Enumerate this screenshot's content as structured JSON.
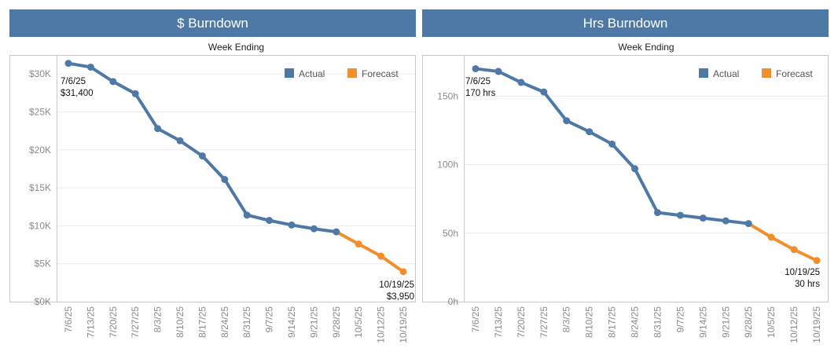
{
  "colors": {
    "actual": "#4e79a7",
    "forecast": "#f28e2b",
    "banner": "#4e79a7",
    "grid": "#ececec",
    "frame": "#c8c8c8"
  },
  "legend": {
    "actual_label": "Actual",
    "forecast_label": "Forecast"
  },
  "chart_data": [
    {
      "type": "line",
      "title": "$ Burndown",
      "xlabel": "Week Ending",
      "ylabel": "",
      "ylim": [
        0,
        32500
      ],
      "y_ticks": [
        0,
        5000,
        10000,
        15000,
        20000,
        25000,
        30000
      ],
      "y_tick_labels": [
        "$0K",
        "$5K",
        "$10K",
        "$15K",
        "$20K",
        "$25K",
        "$30K"
      ],
      "grid": true,
      "legend_position": "top-right",
      "categories": [
        "7/6/25",
        "7/13/25",
        "7/20/25",
        "7/27/25",
        "8/3/25",
        "8/10/25",
        "8/17/25",
        "8/24/25",
        "8/31/25",
        "9/7/25",
        "9/14/25",
        "9/21/25",
        "9/28/25",
        "10/5/25",
        "10/12/25",
        "10/19/25"
      ],
      "series": [
        {
          "name": "Actual",
          "values": [
            31400,
            30900,
            29000,
            27400,
            22800,
            21200,
            19200,
            16100,
            11400,
            10700,
            10100,
            9600,
            9200,
            null,
            null,
            null
          ]
        },
        {
          "name": "Forecast",
          "values": [
            null,
            null,
            null,
            null,
            null,
            null,
            null,
            null,
            null,
            null,
            null,
            null,
            9200,
            7600,
            6000,
            3950
          ]
        }
      ],
      "annotations": [
        {
          "lines": [
            "7/6/25",
            "$31,400"
          ]
        },
        {
          "lines": [
            "10/19/25",
            "$3,950"
          ]
        }
      ]
    },
    {
      "type": "line",
      "title": "Hrs Burndown",
      "xlabel": "Week Ending",
      "ylabel": "",
      "ylim": [
        0,
        180
      ],
      "y_ticks": [
        0,
        50,
        100,
        150
      ],
      "y_tick_labels": [
        "0h",
        "50h",
        "100h",
        "150h"
      ],
      "grid": true,
      "legend_position": "top-right",
      "categories": [
        "7/6/25",
        "7/13/25",
        "7/20/25",
        "7/27/25",
        "8/3/25",
        "8/10/25",
        "8/17/25",
        "8/24/25",
        "8/31/25",
        "9/7/25",
        "9/14/25",
        "9/21/25",
        "9/28/25",
        "10/5/25",
        "10/12/25",
        "10/19/25"
      ],
      "series": [
        {
          "name": "Actual",
          "values": [
            170,
            168,
            160,
            153,
            132,
            124,
            115,
            97,
            65,
            63,
            61,
            59,
            57,
            null,
            null,
            null
          ]
        },
        {
          "name": "Forecast",
          "values": [
            null,
            null,
            null,
            null,
            null,
            null,
            null,
            null,
            null,
            null,
            null,
            null,
            57,
            47,
            38,
            30
          ]
        }
      ],
      "annotations": [
        {
          "lines": [
            "7/6/25",
            "170 hrs"
          ]
        },
        {
          "lines": [
            "10/19/25",
            "30 hrs"
          ]
        }
      ]
    }
  ]
}
